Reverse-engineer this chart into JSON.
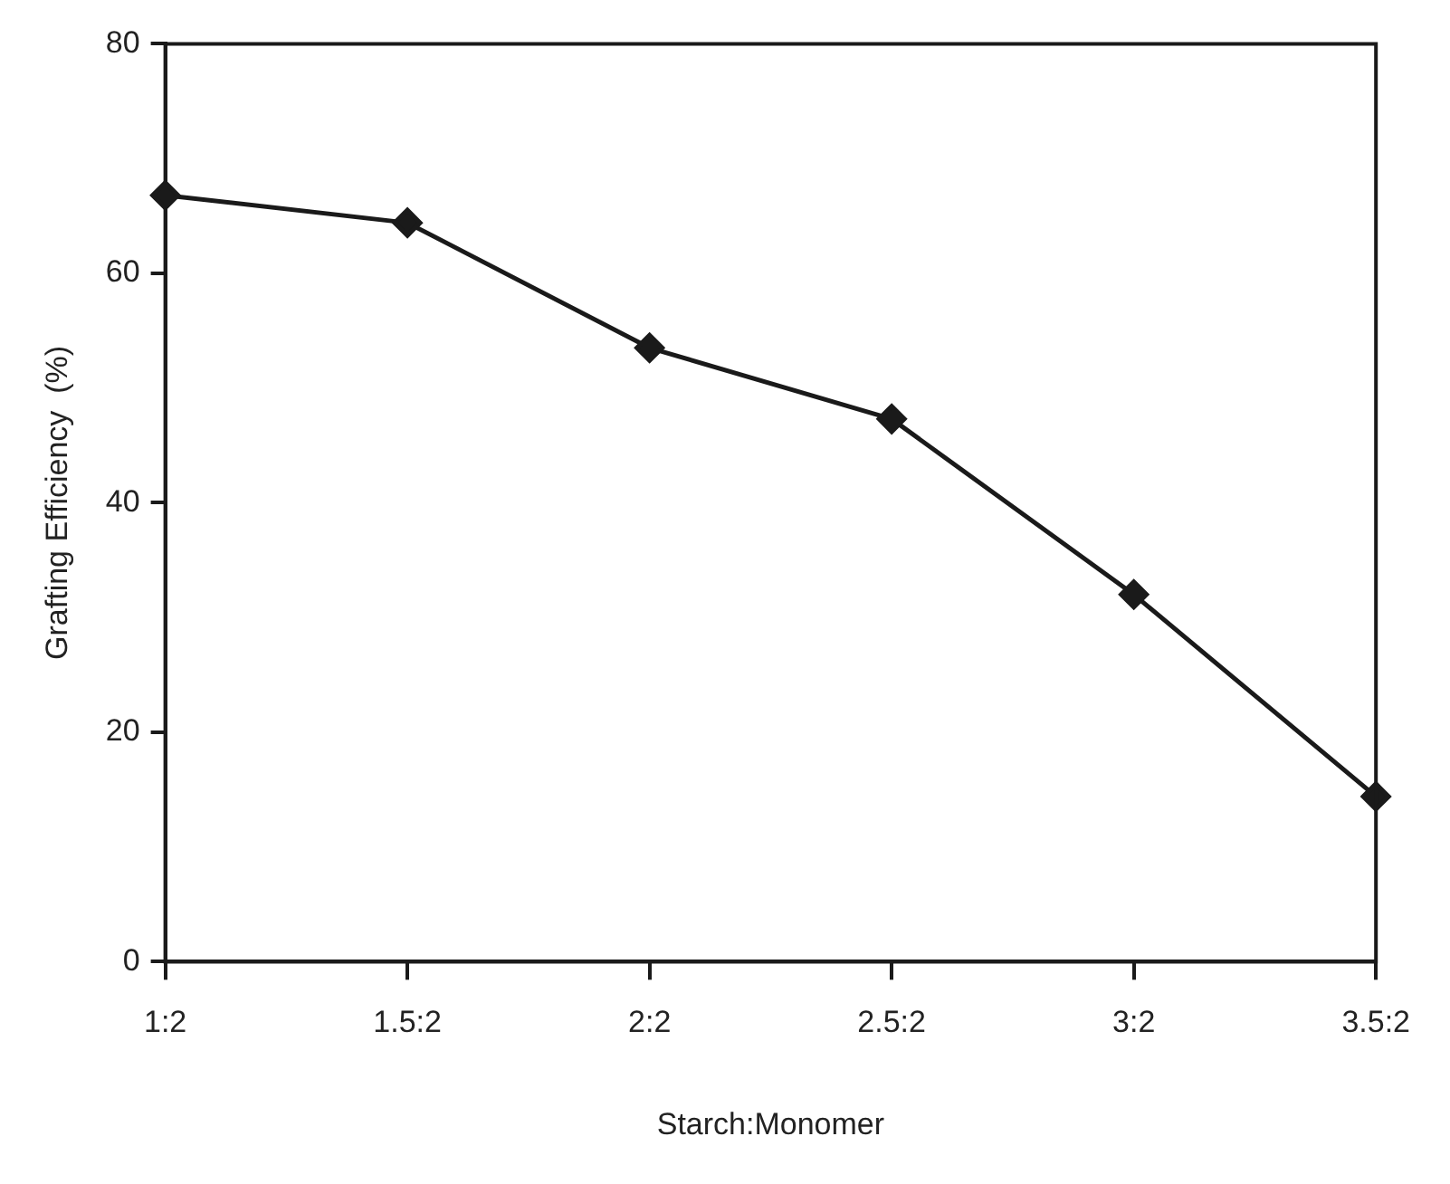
{
  "chart_data": {
    "type": "line",
    "xlabel": "Starch:Monomer",
    "ylabel": "Grafting Efficiency  (%)",
    "categories": [
      "1:2",
      "1.5:2",
      "2:2",
      "2.5:2",
      "3:2",
      "3.5:2"
    ],
    "series": [
      {
        "color": "#1a1a1a",
        "values": [
          66.8,
          64.4,
          53.5,
          47.3,
          32.0,
          14.4
        ]
      }
    ],
    "ylim": [
      0,
      80
    ],
    "yticks": [
      0,
      20,
      40,
      60,
      80
    ],
    "grid": false,
    "legend": false,
    "marker": "diamond",
    "line_style": "solid"
  }
}
